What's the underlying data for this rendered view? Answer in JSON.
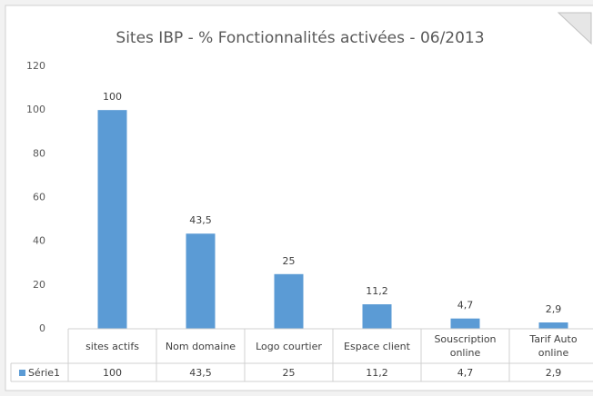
{
  "chart_data": {
    "type": "bar",
    "title": "Sites IBP - % Fonctionnalités activées - 06/2013",
    "categories": [
      "sites actifs",
      "Nom domaine",
      "Logo courtier",
      "Espace client",
      "Souscription online",
      "Tarif Auto online"
    ],
    "series": [
      {
        "name": "Série1",
        "color": "#5b9bd5",
        "values": [
          100,
          43.5,
          25,
          11.2,
          4.7,
          2.9
        ],
        "value_labels": [
          "100",
          "43,5",
          "25",
          "11,2",
          "4,7",
          "2,9"
        ]
      }
    ],
    "ylim": [
      0,
      120
    ],
    "yticks": [
      0,
      20,
      40,
      60,
      80,
      100,
      120
    ],
    "grid": false,
    "data_table": true
  }
}
